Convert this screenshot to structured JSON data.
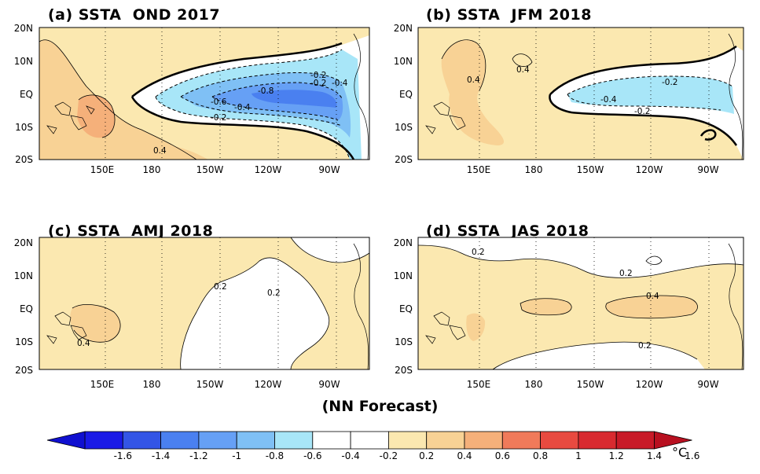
{
  "panels": [
    {
      "id": "a",
      "title": "(a) SSTA  OND 2017",
      "contour_labels": [
        "-0.2",
        "-0.2",
        "-0.4",
        "-0.6",
        "-0.8",
        "-0.4",
        "-0.2",
        "0.4"
      ]
    },
    {
      "id": "b",
      "title": "(b) SSTA  JFM 2018",
      "contour_labels": [
        "0.4",
        "0.4",
        "-0.2",
        "-0.4",
        "-0.2"
      ]
    },
    {
      "id": "c",
      "title": "(c) SSTA  AMJ 2018",
      "contour_labels": [
        "0.2",
        "0.2",
        "0.4"
      ]
    },
    {
      "id": "d",
      "title": "(d) SSTA  JAS 2018",
      "contour_labels": [
        "0.2",
        "0.2",
        "0.4",
        "0.2"
      ]
    }
  ],
  "lat_ticks": [
    "20N",
    "10N",
    "EQ",
    "10S",
    "20S"
  ],
  "lon_ticks": [
    "150E",
    "180",
    "150W",
    "120W",
    "90W"
  ],
  "caption": "(NN Forecast)",
  "colorbar": {
    "labels": [
      "-1.6",
      "-1.4",
      "-1.2",
      "-1",
      "-0.8",
      "-0.6",
      "-0.4",
      "-0.2",
      "0.2",
      "0.4",
      "0.6",
      "0.8",
      "1",
      "1.2",
      "1.4",
      "1.6"
    ],
    "unit": "°C",
    "colors": [
      "#1a1ae6",
      "#3355e6",
      "#4a80f0",
      "#66a0f5",
      "#7fc0f5",
      "#a8e6f8",
      "#ffffff",
      "#ffffff",
      "#fbe8b0",
      "#f8d295",
      "#f5b07a",
      "#f07a5a",
      "#e84a40",
      "#d82a30",
      "#c81a28"
    ]
  },
  "colors": {
    "warm_light": "#fbe8b0",
    "warm_mid": "#f8d295",
    "warm_dark": "#f5b07a",
    "cool_1": "#a8e6f8",
    "cool_2": "#7fc0f5",
    "cool_3": "#66a0f5",
    "cool_4": "#4a80f0"
  }
}
